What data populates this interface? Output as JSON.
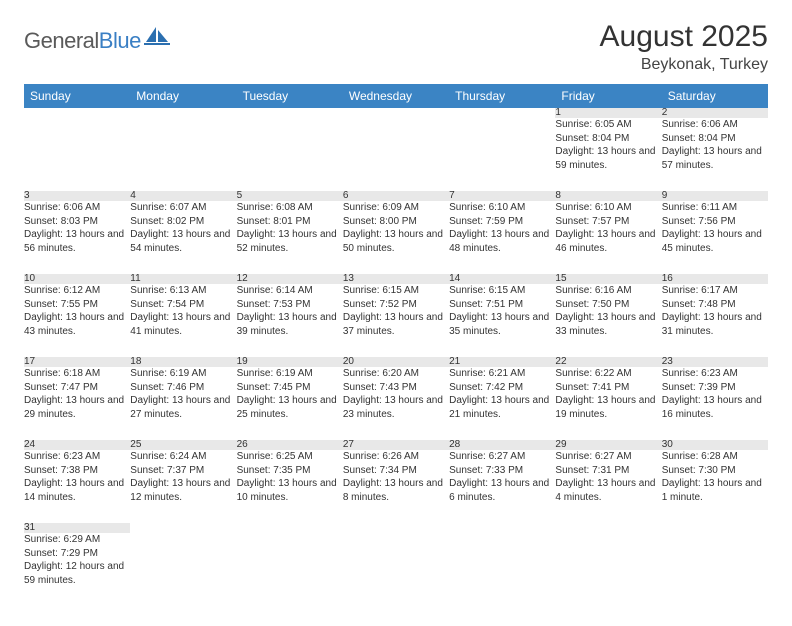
{
  "logo": {
    "general": "General",
    "blue": "Blue"
  },
  "title": "August 2025",
  "location": "Beykonak, Turkey",
  "header_bg": "#3b84c4",
  "header_text": "#ffffff",
  "daynum_bg": "#e8e8e8",
  "divider": "#3b84c4",
  "days": [
    "Sunday",
    "Monday",
    "Tuesday",
    "Wednesday",
    "Thursday",
    "Friday",
    "Saturday"
  ],
  "weeks": [
    [
      null,
      null,
      null,
      null,
      null,
      {
        "n": "1",
        "sr": "6:05 AM",
        "ss": "8:04 PM",
        "dl": "13 hours and 59 minutes."
      },
      {
        "n": "2",
        "sr": "6:06 AM",
        "ss": "8:04 PM",
        "dl": "13 hours and 57 minutes."
      }
    ],
    [
      {
        "n": "3",
        "sr": "6:06 AM",
        "ss": "8:03 PM",
        "dl": "13 hours and 56 minutes."
      },
      {
        "n": "4",
        "sr": "6:07 AM",
        "ss": "8:02 PM",
        "dl": "13 hours and 54 minutes."
      },
      {
        "n": "5",
        "sr": "6:08 AM",
        "ss": "8:01 PM",
        "dl": "13 hours and 52 minutes."
      },
      {
        "n": "6",
        "sr": "6:09 AM",
        "ss": "8:00 PM",
        "dl": "13 hours and 50 minutes."
      },
      {
        "n": "7",
        "sr": "6:10 AM",
        "ss": "7:59 PM",
        "dl": "13 hours and 48 minutes."
      },
      {
        "n": "8",
        "sr": "6:10 AM",
        "ss": "7:57 PM",
        "dl": "13 hours and 46 minutes."
      },
      {
        "n": "9",
        "sr": "6:11 AM",
        "ss": "7:56 PM",
        "dl": "13 hours and 45 minutes."
      }
    ],
    [
      {
        "n": "10",
        "sr": "6:12 AM",
        "ss": "7:55 PM",
        "dl": "13 hours and 43 minutes."
      },
      {
        "n": "11",
        "sr": "6:13 AM",
        "ss": "7:54 PM",
        "dl": "13 hours and 41 minutes."
      },
      {
        "n": "12",
        "sr": "6:14 AM",
        "ss": "7:53 PM",
        "dl": "13 hours and 39 minutes."
      },
      {
        "n": "13",
        "sr": "6:15 AM",
        "ss": "7:52 PM",
        "dl": "13 hours and 37 minutes."
      },
      {
        "n": "14",
        "sr": "6:15 AM",
        "ss": "7:51 PM",
        "dl": "13 hours and 35 minutes."
      },
      {
        "n": "15",
        "sr": "6:16 AM",
        "ss": "7:50 PM",
        "dl": "13 hours and 33 minutes."
      },
      {
        "n": "16",
        "sr": "6:17 AM",
        "ss": "7:48 PM",
        "dl": "13 hours and 31 minutes."
      }
    ],
    [
      {
        "n": "17",
        "sr": "6:18 AM",
        "ss": "7:47 PM",
        "dl": "13 hours and 29 minutes."
      },
      {
        "n": "18",
        "sr": "6:19 AM",
        "ss": "7:46 PM",
        "dl": "13 hours and 27 minutes."
      },
      {
        "n": "19",
        "sr": "6:19 AM",
        "ss": "7:45 PM",
        "dl": "13 hours and 25 minutes."
      },
      {
        "n": "20",
        "sr": "6:20 AM",
        "ss": "7:43 PM",
        "dl": "13 hours and 23 minutes."
      },
      {
        "n": "21",
        "sr": "6:21 AM",
        "ss": "7:42 PM",
        "dl": "13 hours and 21 minutes."
      },
      {
        "n": "22",
        "sr": "6:22 AM",
        "ss": "7:41 PM",
        "dl": "13 hours and 19 minutes."
      },
      {
        "n": "23",
        "sr": "6:23 AM",
        "ss": "7:39 PM",
        "dl": "13 hours and 16 minutes."
      }
    ],
    [
      {
        "n": "24",
        "sr": "6:23 AM",
        "ss": "7:38 PM",
        "dl": "13 hours and 14 minutes."
      },
      {
        "n": "25",
        "sr": "6:24 AM",
        "ss": "7:37 PM",
        "dl": "13 hours and 12 minutes."
      },
      {
        "n": "26",
        "sr": "6:25 AM",
        "ss": "7:35 PM",
        "dl": "13 hours and 10 minutes."
      },
      {
        "n": "27",
        "sr": "6:26 AM",
        "ss": "7:34 PM",
        "dl": "13 hours and 8 minutes."
      },
      {
        "n": "28",
        "sr": "6:27 AM",
        "ss": "7:33 PM",
        "dl": "13 hours and 6 minutes."
      },
      {
        "n": "29",
        "sr": "6:27 AM",
        "ss": "7:31 PM",
        "dl": "13 hours and 4 minutes."
      },
      {
        "n": "30",
        "sr": "6:28 AM",
        "ss": "7:30 PM",
        "dl": "13 hours and 1 minute."
      }
    ],
    [
      {
        "n": "31",
        "sr": "6:29 AM",
        "ss": "7:29 PM",
        "dl": "12 hours and 59 minutes."
      },
      null,
      null,
      null,
      null,
      null,
      null
    ]
  ],
  "labels": {
    "sunrise": "Sunrise:",
    "sunset": "Sunset:",
    "daylight": "Daylight:"
  }
}
